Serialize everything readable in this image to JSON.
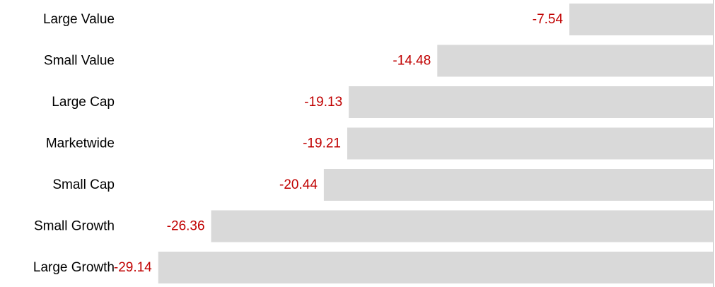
{
  "chart_data": {
    "type": "bar",
    "orientation": "horizontal",
    "categories": [
      "Large Value",
      "Small Value",
      "Large Cap",
      "Marketwide",
      "Small Cap",
      "Small Growth",
      "Large Growth"
    ],
    "values": [
      -7.54,
      -14.48,
      -19.13,
      -19.21,
      -20.44,
      -26.36,
      -29.14
    ],
    "data_labels": [
      "-7.54",
      "-14.48",
      "-19.13",
      "-19.21",
      "-20.44",
      "-26.36",
      "-29.14"
    ],
    "title": "",
    "xlabel": "",
    "ylabel": "",
    "xlim": [
      -30.84,
      0
    ],
    "grid": false,
    "legend": "none"
  },
  "colors": {
    "bar": "#d9d9d9",
    "data_label": "#c00000",
    "category_label": "#000000",
    "zero_axis": "#bfbfbf"
  }
}
